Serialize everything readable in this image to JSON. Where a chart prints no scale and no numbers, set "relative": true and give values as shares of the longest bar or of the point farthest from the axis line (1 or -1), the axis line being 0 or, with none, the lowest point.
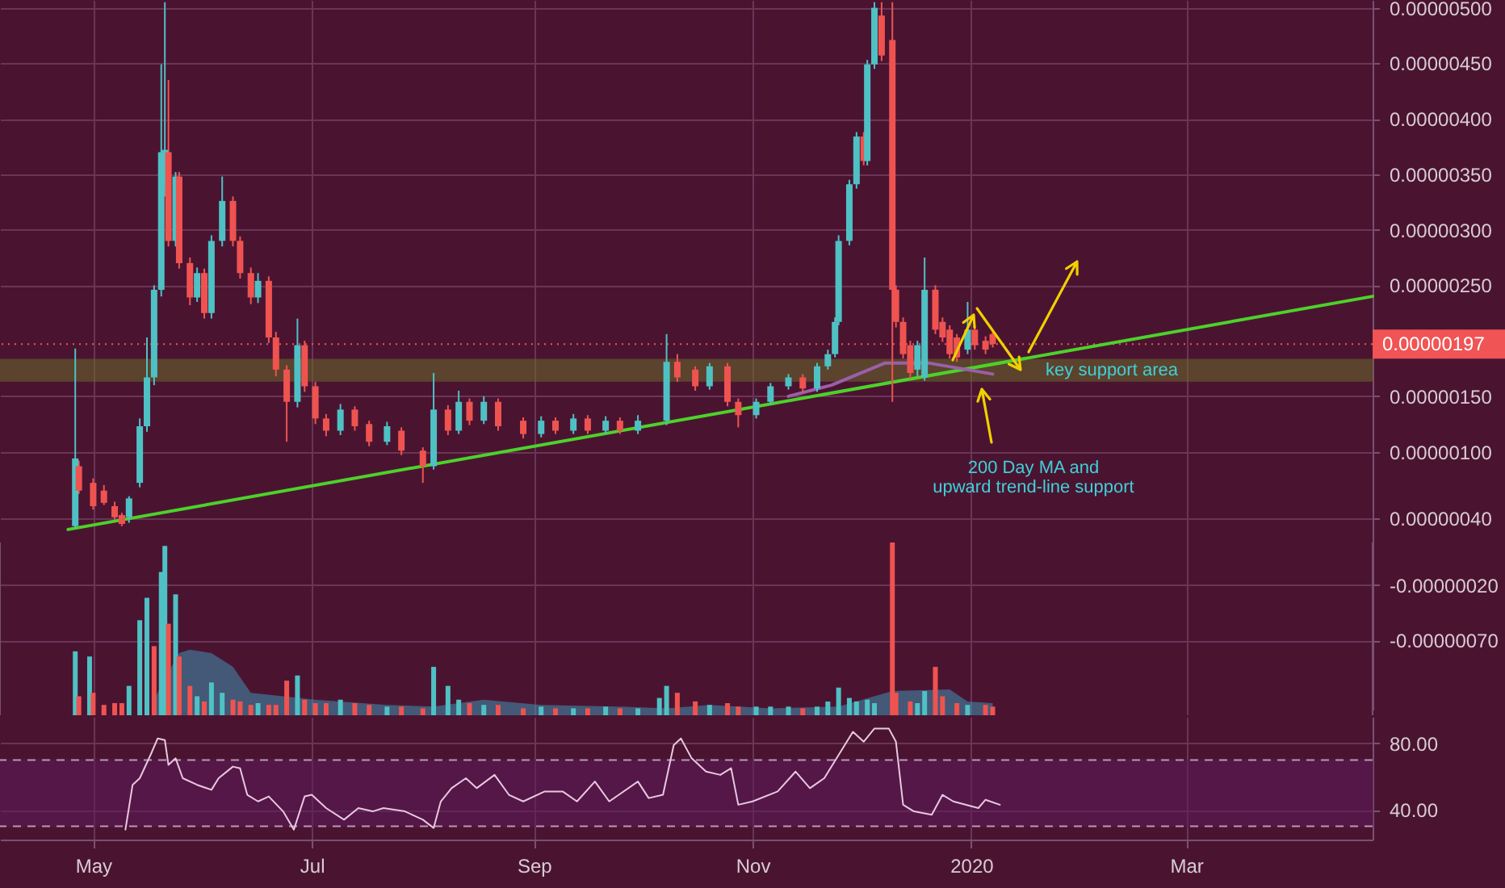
{
  "chart_data": [
    {
      "type": "candlestick",
      "xlim": [
        "2019-04-05",
        "2020-04-22"
      ],
      "xticks": [
        {
          "value": "2019-05-01",
          "label": null
        },
        {
          "value": "2019-07-01",
          "label": null
        },
        {
          "value": "2019-09-01",
          "label": null
        },
        {
          "value": "2019-11-01",
          "label": null
        },
        {
          "value": "2020-01-01",
          "label": null
        },
        {
          "value": "2020-03-01",
          "label": null
        }
      ],
      "ylim": [
        -1.33e-06,
        5.07e-06
      ],
      "yticks": [
        {
          "value": -7e-07,
          "label": "-0.00000070"
        },
        {
          "value": -2e-07,
          "label": "-0.00000020"
        },
        {
          "value": 4e-07,
          "label": "0.00000040"
        },
        {
          "value": 1e-06,
          "label": "0.00000100"
        },
        {
          "value": 1.5e-06,
          "label": "0.00000150"
        },
        {
          "value": 2.5e-06,
          "label": "0.00000250"
        },
        {
          "value": 3e-06,
          "label": "0.00000300"
        },
        {
          "value": 3.5e-06,
          "label": "0.00000350"
        },
        {
          "value": 4e-06,
          "label": "0.00000400"
        },
        {
          "value": 4.5e-06,
          "label": "0.00000450"
        },
        {
          "value": 5e-06,
          "label": "0.00000500"
        }
      ],
      "tick_labels": "y",
      "grid": true,
      "x": [
        "2019-04-26",
        "2019-04-27",
        "2019-05-01",
        "2019-05-04",
        "2019-05-07",
        "2019-05-09",
        "2019-05-11",
        "2019-05-14",
        "2019-05-16",
        "2019-05-18",
        "2019-05-20",
        "2019-05-21",
        "2019-05-22",
        "2019-05-24",
        "2019-05-25",
        "2019-05-28",
        "2019-05-30",
        "2019-06-01",
        "2019-06-03",
        "2019-06-06",
        "2019-06-09",
        "2019-06-11",
        "2019-06-14",
        "2019-06-16",
        "2019-06-19",
        "2019-06-21",
        "2019-06-24",
        "2019-06-27",
        "2019-06-29",
        "2019-07-02",
        "2019-07-05",
        "2019-07-09",
        "2019-07-13",
        "2019-07-17",
        "2019-07-22",
        "2019-07-26",
        "2019-08-01",
        "2019-08-04",
        "2019-08-08",
        "2019-08-11",
        "2019-08-14",
        "2019-08-18",
        "2019-08-22",
        "2019-08-29",
        "2019-09-03",
        "2019-09-07",
        "2019-09-12",
        "2019-09-16",
        "2019-09-21",
        "2019-09-25",
        "2019-09-30",
        "2019-10-08",
        "2019-10-11",
        "2019-10-16",
        "2019-10-20",
        "2019-10-25",
        "2019-10-28",
        "2019-11-02",
        "2019-11-06",
        "2019-11-11",
        "2019-11-15",
        "2019-11-19",
        "2019-11-22",
        "2019-11-24",
        "2019-11-25",
        "2019-11-28",
        "2019-11-30",
        "2019-12-02",
        "2019-12-03",
        "2019-12-05",
        "2019-12-07",
        "2019-12-10",
        "2019-12-11",
        "2019-12-13",
        "2019-12-15",
        "2019-12-17",
        "2019-12-19",
        "2019-12-22",
        "2019-12-24",
        "2019-12-26",
        "2019-12-28",
        "2019-12-31",
        "2020-01-02",
        "2020-01-05",
        "2020-01-07"
      ],
      "ohlc": [
        [
          3.3e-07,
          1.93e-06,
          3.1e-07,
          9.4e-07
        ],
        [
          8.7e-07,
          9.2e-07,
          6.2e-07,
          6.5e-07
        ],
        [
          7.2e-07,
          7.6e-07,
          4.8e-07,
          5.1e-07
        ],
        [
          6.5e-07,
          7e-07,
          5.2e-07,
          5.4e-07
        ],
        [
          5.1e-07,
          5.5e-07,
          3.9e-07,
          4.1e-07
        ],
        [
          4.3e-07,
          4.5e-07,
          3.3e-07,
          3.5e-07
        ],
        [
          4.1e-07,
          6e-07,
          3.6e-07,
          5.8e-07
        ],
        [
          7.2e-07,
          1.3e-06,
          6.8e-07,
          1.23e-06
        ],
        [
          1.23e-06,
          2.03e-06,
          1.18e-06,
          1.67e-06
        ],
        [
          1.67e-06,
          2.5e-06,
          1.6e-06,
          2.46e-06
        ],
        [
          2.46e-06,
          4.49e-06,
          2.4e-06,
          3.7e-06
        ],
        [
          3.4e-06,
          5.05e-06,
          3.3e-06,
          3.72e-06
        ],
        [
          3.7e-06,
          4.35e-06,
          2.85e-06,
          2.9e-06
        ],
        [
          2.9e-06,
          3.52e-06,
          2.85e-06,
          3.48e-06
        ],
        [
          3.48e-06,
          3.52e-06,
          2.65e-06,
          2.7e-06
        ],
        [
          2.7e-06,
          2.75e-06,
          2.32e-06,
          2.39e-06
        ],
        [
          2.39e-06,
          2.66e-06,
          2.35e-06,
          2.61e-06
        ],
        [
          2.61e-06,
          2.65e-06,
          2.2e-06,
          2.25e-06
        ],
        [
          2.25e-06,
          2.95e-06,
          2.2e-06,
          2.9e-06
        ],
        [
          2.9e-06,
          3.48e-06,
          2.85e-06,
          3.26e-06
        ],
        [
          3.26e-06,
          3.3e-06,
          2.85e-06,
          2.9e-06
        ],
        [
          2.9e-06,
          2.94e-06,
          2.56e-06,
          2.61e-06
        ],
        [
          2.61e-06,
          2.66e-06,
          2.33e-06,
          2.39e-06
        ],
        [
          2.39e-06,
          2.61e-06,
          2.34e-06,
          2.54e-06
        ],
        [
          2.54e-06,
          2.58e-06,
          1.98e-06,
          2.03e-06
        ],
        [
          2.03e-06,
          2.08e-06,
          1.68e-06,
          1.74e-06
        ],
        [
          1.74e-06,
          1.78e-06,
          1.09e-06,
          1.45e-06
        ],
        [
          1.45e-06,
          2.2e-06,
          1.4e-06,
          1.96e-06
        ],
        [
          1.96e-06,
          2e-06,
          1.54e-06,
          1.59e-06
        ],
        [
          1.59e-06,
          1.63e-06,
          1.25e-06,
          1.3e-06
        ],
        [
          1.3e-06,
          1.34e-06,
          1.14e-06,
          1.19e-06
        ],
        [
          1.19e-06,
          1.43e-06,
          1.15e-06,
          1.38e-06
        ],
        [
          1.38e-06,
          1.41e-06,
          1.19e-06,
          1.23e-06
        ],
        [
          1.25e-06,
          1.28e-06,
          1.05e-06,
          1.09e-06
        ],
        [
          1.09e-06,
          1.27e-06,
          1.06e-06,
          1.23e-06
        ],
        [
          1.19e-06,
          1.22e-06,
          9.7e-07,
          1.01e-06
        ],
        [
          1.01e-06,
          1.04e-06,
          7.2e-07,
          8.7e-07
        ],
        [
          8.7e-07,
          1.71e-06,
          8.4e-07,
          1.38e-06
        ],
        [
          1.38e-06,
          1.42e-06,
          1.15e-06,
          1.19e-06
        ],
        [
          1.19e-06,
          1.55e-06,
          1.16e-06,
          1.45e-06
        ],
        [
          1.45e-06,
          1.48e-06,
          1.24e-06,
          1.28e-06
        ],
        [
          1.28e-06,
          1.5e-06,
          1.25e-06,
          1.45e-06
        ],
        [
          1.45e-06,
          1.48e-06,
          1.19e-06,
          1.23e-06
        ],
        [
          1.28e-06,
          1.31e-06,
          1.12e-06,
          1.16e-06
        ],
        [
          1.16e-06,
          1.32e-06,
          1.13e-06,
          1.28e-06
        ],
        [
          1.28e-06,
          1.31e-06,
          1.16e-06,
          1.19e-06
        ],
        [
          1.19e-06,
          1.34e-06,
          1.16e-06,
          1.3e-06
        ],
        [
          1.3e-06,
          1.33e-06,
          1.16e-06,
          1.19e-06
        ],
        [
          1.19e-06,
          1.32e-06,
          1.16e-06,
          1.28e-06
        ],
        [
          1.28e-06,
          1.31e-06,
          1.16e-06,
          1.19e-06
        ],
        [
          1.19e-06,
          1.33e-06,
          1.16e-06,
          1.28e-06
        ],
        [
          1.28e-06,
          2.06e-06,
          1.24e-06,
          1.81e-06
        ],
        [
          1.81e-06,
          1.88e-06,
          1.63e-06,
          1.67e-06
        ],
        [
          1.74e-06,
          1.77e-06,
          1.55e-06,
          1.59e-06
        ],
        [
          1.59e-06,
          1.8e-06,
          1.56e-06,
          1.77e-06
        ],
        [
          1.77e-06,
          1.8e-06,
          1.41e-06,
          1.45e-06
        ],
        [
          1.45e-06,
          1.48e-06,
          1.22e-06,
          1.33e-06
        ],
        [
          1.33e-06,
          1.48e-06,
          1.3e-06,
          1.45e-06
        ],
        [
          1.45e-06,
          1.62e-06,
          1.42e-06,
          1.59e-06
        ],
        [
          1.59e-06,
          1.7e-06,
          1.56e-06,
          1.67e-06
        ],
        [
          1.67e-06,
          1.7e-06,
          1.53e-06,
          1.57e-06
        ],
        [
          1.57e-06,
          1.8e-06,
          1.54e-06,
          1.77e-06
        ],
        [
          1.77e-06,
          1.92e-06,
          1.74e-06,
          1.88e-06
        ],
        [
          1.88e-06,
          2.21e-06,
          1.85e-06,
          2.17e-06
        ],
        [
          2.17e-06,
          2.95e-06,
          2.14e-06,
          2.9e-06
        ],
        [
          2.9e-06,
          3.45e-06,
          2.86e-06,
          3.41e-06
        ],
        [
          3.41e-06,
          3.88e-06,
          3.37e-06,
          3.84e-06
        ],
        [
          3.84e-06,
          3.88e-06,
          3.58e-06,
          3.62e-06
        ],
        [
          3.62e-06,
          4.53e-06,
          3.58e-06,
          4.49e-06
        ],
        [
          4.49e-06,
          5.05e-06,
          4.45e-06,
          5e-06
        ],
        [
          4.93e-06,
          5.05e-06,
          4.52e-06,
          4.57e-06
        ],
        [
          4.71e-06,
          5.05e-06,
          1.45e-06,
          2.46e-06
        ],
        [
          2.46e-06,
          2.5e-06,
          2.12e-06,
          2.17e-06
        ],
        [
          2.17e-06,
          2.21e-06,
          1.84e-06,
          1.88e-06
        ],
        [
          1.96e-06,
          2e-06,
          1.66e-06,
          1.71e-06
        ],
        [
          1.74e-06,
          2e-06,
          1.68e-06,
          1.96e-06
        ],
        [
          1.67e-06,
          2.75e-06,
          1.64e-06,
          2.46e-06
        ],
        [
          2.46e-06,
          2.5e-06,
          2.06e-06,
          2.1e-06
        ],
        [
          2.17e-06,
          2.21e-06,
          1.99e-06,
          2.03e-06
        ],
        [
          2.1e-06,
          2.14e-06,
          1.84e-06,
          1.88e-06
        ],
        [
          2.03e-06,
          2.06e-06,
          1.81e-06,
          1.85e-06
        ],
        [
          1.92e-06,
          2.35e-06,
          1.88e-06,
          2.1e-06
        ],
        [
          2.1e-06,
          2.14e-06,
          1.92e-06,
          1.96e-06
        ],
        [
          2e-06,
          2.04e-06,
          1.88e-06,
          1.92e-06
        ],
        [
          2.06e-06,
          2.09e-06,
          1.94e-06,
          1.97e-06
        ]
      ],
      "colors": [
        "#4fc1c4",
        "#ef5350",
        "#ef5350",
        "#ef5350",
        "#ef5350",
        "#ef5350",
        "#4fc1c4",
        "#4fc1c4",
        "#4fc1c4",
        "#4fc1c4",
        "#4fc1c4",
        "#4fc1c4",
        "#ef5350",
        "#4fc1c4",
        "#ef5350",
        "#ef5350",
        "#4fc1c4",
        "#ef5350",
        "#4fc1c4",
        "#4fc1c4",
        "#ef5350",
        "#ef5350",
        "#ef5350",
        "#4fc1c4",
        "#ef5350",
        "#ef5350",
        "#ef5350",
        "#4fc1c4",
        "#ef5350",
        "#ef5350",
        "#ef5350",
        "#4fc1c4",
        "#ef5350",
        "#ef5350",
        "#4fc1c4",
        "#ef5350",
        "#ef5350",
        "#4fc1c4",
        "#ef5350",
        "#4fc1c4",
        "#ef5350",
        "#4fc1c4",
        "#ef5350",
        "#ef5350",
        "#4fc1c4",
        "#ef5350",
        "#4fc1c4",
        "#ef5350",
        "#4fc1c4",
        "#ef5350",
        "#4fc1c4",
        "#4fc1c4",
        "#ef5350",
        "#ef5350",
        "#4fc1c4",
        "#ef5350",
        "#ef5350",
        "#4fc1c4",
        "#4fc1c4",
        "#4fc1c4",
        "#ef5350",
        "#4fc1c4",
        "#4fc1c4",
        "#4fc1c4",
        "#4fc1c4",
        "#4fc1c4",
        "#4fc1c4",
        "#ef5350",
        "#4fc1c4",
        "#4fc1c4",
        "#ef5350",
        "#ef5350",
        "#ef5350",
        "#ef5350",
        "#ef5350",
        "#4fc1c4",
        "#4fc1c4",
        "#ef5350",
        "#ef5350",
        "#ef5350",
        "#ef5350",
        "#4fc1c4",
        "#ef5350",
        "#ef5350",
        "#ef5350"
      ],
      "series": [
        {
          "type": "line",
          "color": "#4cd22a",
          "x": [
            "2019-04-24",
            "2020-04-22"
          ],
          "values": [
            3e-07,
            2.4e-06
          ]
        },
        {
          "type": "line",
          "color": "#9b5fa8",
          "x": [
            "2019-11-11",
            "2019-11-23",
            "2019-12-08",
            "2019-12-20",
            "2020-01-07"
          ],
          "values": [
            1.5e-06,
            1.6e-06,
            1.8e-06,
            1.8e-06,
            1.7e-06
          ]
        }
      ],
      "bands": [
        {
          "axis": "y",
          "from": 1.64e-06,
          "to": 1.83e-06,
          "label": "key support area",
          "color": "#6b6a2a"
        }
      ],
      "ref_lines": [
        {
          "axis": "y",
          "value": 1.97e-06,
          "label": "0.00000197",
          "color": "#f05454",
          "line_style": "dotted"
        }
      ],
      "annotations": [
        "200 Day MA and\nupward trend-line support"
      ]
    },
    {
      "type": "bar",
      "relative": true,
      "tick_labels": false,
      "grid": "x",
      "xlim": [
        "2019-04-05",
        "2020-04-22"
      ],
      "xticks": [
        {
          "value": "2019-05-01",
          "label": null
        },
        {
          "value": "2019-07-01",
          "label": null
        },
        {
          "value": "2019-09-01",
          "label": null
        },
        {
          "value": "2019-11-01",
          "label": null
        },
        {
          "value": "2020-01-01",
          "label": null
        },
        {
          "value": "2020-03-01",
          "label": null
        }
      ],
      "series": [
        {
          "type": "bar",
          "x": [
            "2019-04-26",
            "2019-04-27",
            "2019-04-30",
            "2019-05-01",
            "2019-05-04",
            "2019-05-07",
            "2019-05-09",
            "2019-05-11",
            "2019-05-14",
            "2019-05-16",
            "2019-05-18",
            "2019-05-20",
            "2019-05-21",
            "2019-05-22",
            "2019-05-24",
            "2019-05-25",
            "2019-05-28",
            "2019-05-30",
            "2019-06-01",
            "2019-06-03",
            "2019-06-06",
            "2019-06-09",
            "2019-06-11",
            "2019-06-14",
            "2019-06-16",
            "2019-06-19",
            "2019-06-21",
            "2019-06-24",
            "2019-06-27",
            "2019-06-29",
            "2019-07-02",
            "2019-07-05",
            "2019-07-09",
            "2019-07-13",
            "2019-07-17",
            "2019-07-22",
            "2019-07-26",
            "2019-08-01",
            "2019-08-04",
            "2019-08-08",
            "2019-08-11",
            "2019-08-14",
            "2019-08-18",
            "2019-08-22",
            "2019-08-29",
            "2019-09-03",
            "2019-09-07",
            "2019-09-12",
            "2019-09-16",
            "2019-09-21",
            "2019-09-25",
            "2019-09-30",
            "2019-10-06",
            "2019-10-08",
            "2019-10-11",
            "2019-10-16",
            "2019-10-20",
            "2019-10-25",
            "2019-10-28",
            "2019-11-02",
            "2019-11-06",
            "2019-11-11",
            "2019-11-15",
            "2019-11-19",
            "2019-11-22",
            "2019-11-25",
            "2019-11-28",
            "2019-11-30",
            "2019-12-03",
            "2019-12-05",
            "2019-12-10",
            "2019-12-11",
            "2019-12-15",
            "2019-12-17",
            "2019-12-19",
            "2019-12-22",
            "2019-12-24",
            "2019-12-28",
            "2019-12-31",
            "2020-01-05",
            "2020-01-07"
          ],
          "values": [
            0.37,
            0.11,
            0.34,
            0.13,
            0.06,
            0.07,
            0.07,
            0.17,
            0.55,
            0.68,
            0.4,
            0.83,
            0.98,
            0.53,
            0.7,
            0.34,
            0.17,
            0.11,
            0.08,
            0.19,
            0.13,
            0.09,
            0.08,
            0.06,
            0.07,
            0.06,
            0.06,
            0.2,
            0.23,
            0.09,
            0.07,
            0.07,
            0.09,
            0.07,
            0.06,
            0.05,
            0.05,
            0.04,
            0.28,
            0.17,
            0.09,
            0.07,
            0.06,
            0.06,
            0.04,
            0.05,
            0.04,
            0.04,
            0.04,
            0.05,
            0.04,
            0.04,
            0.1,
            0.17,
            0.13,
            0.08,
            0.06,
            0.07,
            0.05,
            0.05,
            0.05,
            0.05,
            0.04,
            0.05,
            0.08,
            0.16,
            0.1,
            0.08,
            0.09,
            0.07,
            1,
            0.13,
            0.08,
            0.07,
            0.14,
            0.28,
            0.11,
            0.07,
            0.06,
            0.06,
            0.05
          ],
          "colors": [
            "#4fc1c4",
            "#ef5350",
            "#4fc1c4",
            "#ef5350",
            "#ef5350",
            "#ef5350",
            "#ef5350",
            "#4fc1c4",
            "#4fc1c4",
            "#4fc1c4",
            "#ef5350",
            "#4fc1c4",
            "#4fc1c4",
            "#ef5350",
            "#4fc1c4",
            "#ef5350",
            "#ef5350",
            "#4fc1c4",
            "#ef5350",
            "#4fc1c4",
            "#4fc1c4",
            "#ef5350",
            "#ef5350",
            "#ef5350",
            "#4fc1c4",
            "#ef5350",
            "#ef5350",
            "#ef5350",
            "#4fc1c4",
            "#ef5350",
            "#ef5350",
            "#ef5350",
            "#4fc1c4",
            "#ef5350",
            "#ef5350",
            "#4fc1c4",
            "#ef5350",
            "#ef5350",
            "#4fc1c4",
            "#4fc1c4",
            "#4fc1c4",
            "#ef5350",
            "#4fc1c4",
            "#ef5350",
            "#ef5350",
            "#4fc1c4",
            "#ef5350",
            "#4fc1c4",
            "#ef5350",
            "#4fc1c4",
            "#ef5350",
            "#4fc1c4",
            "#4fc1c4",
            "#4fc1c4",
            "#ef5350",
            "#ef5350",
            "#4fc1c4",
            "#ef5350",
            "#ef5350",
            "#4fc1c4",
            "#4fc1c4",
            "#4fc1c4",
            "#ef5350",
            "#4fc1c4",
            "#4fc1c4",
            "#4fc1c4",
            "#4fc1c4",
            "#4fc1c4",
            "#4fc1c4",
            "#4fc1c4",
            "#ef5350",
            "#ef5350",
            "#ef5350",
            "#4fc1c4",
            "#4fc1c4",
            "#ef5350",
            "#ef5350",
            "#ef5350",
            "#4fc1c4",
            "#ef5350",
            "#ef5350"
          ]
        },
        {
          "type": "area",
          "color": "#3f8fb0",
          "x": [
            "2019-05-18",
            "2019-05-22",
            "2019-05-25",
            "2019-05-28",
            "2019-06-03",
            "2019-06-09",
            "2019-06-14",
            "2019-07-02",
            "2019-07-22",
            "2019-08-04",
            "2019-08-18",
            "2019-09-03",
            "2019-09-25",
            "2019-10-08",
            "2019-10-20",
            "2019-11-06",
            "2019-11-25",
            "2019-12-10",
            "2019-12-26",
            "2019-12-31",
            "2020-01-07"
          ],
          "values": [
            0.09,
            0.25,
            0.36,
            0.38,
            0.36,
            0.28,
            0.13,
            0.09,
            0.06,
            0.05,
            0.09,
            0.06,
            0.05,
            0.04,
            0.06,
            0.04,
            0.05,
            0.14,
            0.15,
            0.08,
            0.07
          ]
        }
      ]
    },
    {
      "type": "line",
      "xlim": [
        "2019-04-05",
        "2020-04-22"
      ],
      "xticks": [
        {
          "value": "2019-05-01",
          "label": "May"
        },
        {
          "value": "2019-07-01",
          "label": "Jul"
        },
        {
          "value": "2019-09-01",
          "label": "Sep"
        },
        {
          "value": "2019-11-01",
          "label": "Nov"
        },
        {
          "value": "2020-01-01",
          "label": "2020"
        },
        {
          "value": "2020-03-01",
          "label": "Mar"
        }
      ],
      "ylim": [
        22,
        96
      ],
      "yticks": [
        {
          "value": 40,
          "label": "40.00"
        },
        {
          "value": 80,
          "label": "80.00"
        }
      ],
      "grid": true,
      "series": [
        {
          "color": "#e8c8e0",
          "x": [
            "2019-05-10",
            "2019-05-12",
            "2019-05-14",
            "2019-05-17",
            "2019-05-19",
            "2019-05-21",
            "2019-05-22",
            "2019-05-24",
            "2019-05-26",
            "2019-05-30",
            "2019-06-03",
            "2019-06-05",
            "2019-06-09",
            "2019-06-11",
            "2019-06-13",
            "2019-06-16",
            "2019-06-19",
            "2019-06-23",
            "2019-06-26",
            "2019-06-29",
            "2019-07-01",
            "2019-07-05",
            "2019-07-10",
            "2019-07-14",
            "2019-07-18",
            "2019-07-21",
            "2019-07-27",
            "2019-08-01",
            "2019-08-04",
            "2019-08-06",
            "2019-08-09",
            "2019-08-13",
            "2019-08-16",
            "2019-08-21",
            "2019-08-25",
            "2019-08-29",
            "2019-09-04",
            "2019-09-09",
            "2019-09-13",
            "2019-09-18",
            "2019-09-22",
            "2019-09-30",
            "2019-10-03",
            "2019-10-07",
            "2019-10-10",
            "2019-10-12",
            "2019-10-15",
            "2019-10-19",
            "2019-10-23",
            "2019-10-26",
            "2019-10-28",
            "2019-11-01",
            "2019-11-08",
            "2019-11-13",
            "2019-11-17",
            "2019-11-21",
            "2019-11-25",
            "2019-11-29",
            "2019-12-02",
            "2019-12-05",
            "2019-12-09",
            "2019-12-11",
            "2019-12-13",
            "2019-12-16",
            "2019-12-21",
            "2019-12-24",
            "2019-12-27",
            "2020-01-03",
            "2020-01-05",
            "2020-01-09"
          ],
          "values": [
            28,
            55,
            59,
            73,
            83,
            82,
            67,
            71,
            59,
            55,
            52,
            59,
            66,
            65,
            49,
            45,
            48,
            39,
            28,
            48,
            49,
            41,
            34,
            41,
            39,
            41,
            39,
            34,
            29,
            45,
            53,
            59,
            53,
            61,
            49,
            45,
            51,
            51,
            45,
            57,
            45,
            57,
            47,
            49,
            79,
            83,
            71,
            63,
            61,
            65,
            43,
            45,
            51,
            63,
            53,
            59,
            73,
            87,
            81,
            89,
            89,
            81,
            43,
            39,
            37,
            49,
            45,
            41,
            46,
            43
          ]
        }
      ],
      "bands": [
        {
          "axis": "y",
          "from": 30,
          "to": 70,
          "color": "#5e1a5a"
        }
      ],
      "ref_lines": [
        {
          "axis": "y",
          "value": 70,
          "label": null,
          "color": "#b89ab0",
          "line_style": "dashed"
        },
        {
          "axis": "y",
          "value": 30,
          "label": null,
          "color": "#b89ab0",
          "line_style": "dashed"
        }
      ]
    }
  ]
}
